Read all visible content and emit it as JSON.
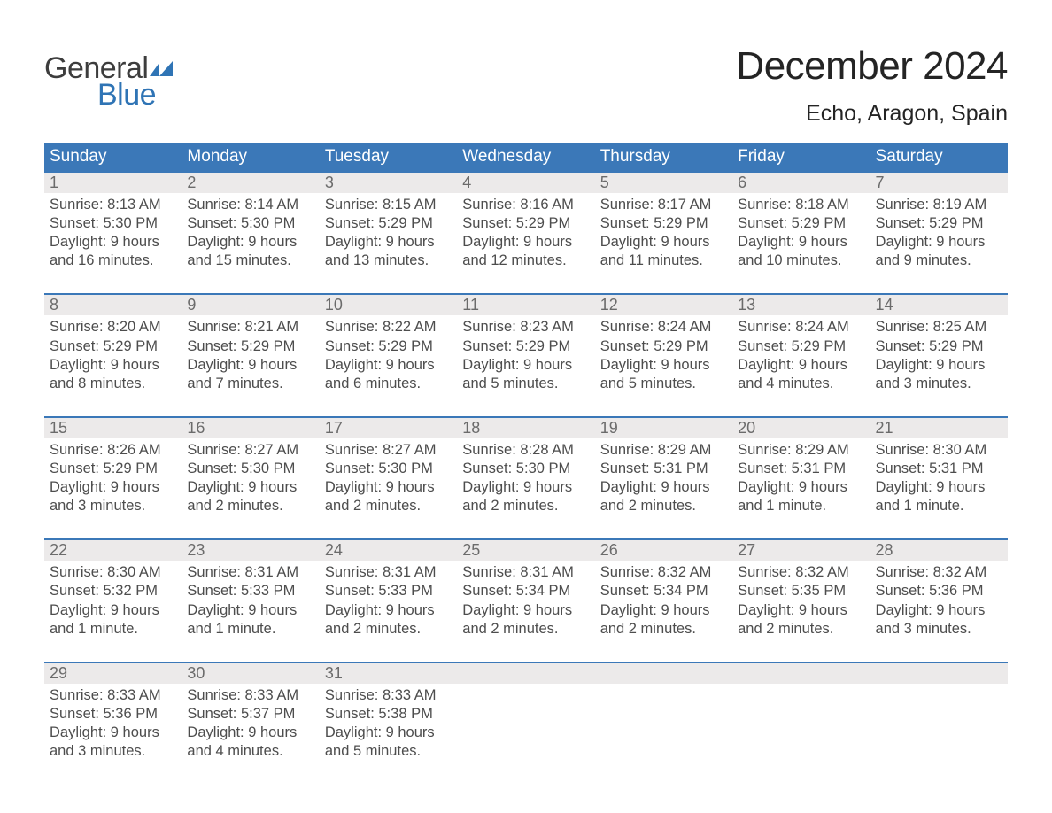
{
  "brandColors": {
    "primary": "#3b78b8",
    "logoBlue": "#2f74b5",
    "textDark": "#333333",
    "headerRowBg": "#eceaea"
  },
  "logo": {
    "line1": "General",
    "line2": "Blue"
  },
  "title": "December 2024",
  "location": "Echo, Aragon, Spain",
  "weekdays": [
    "Sunday",
    "Monday",
    "Tuesday",
    "Wednesday",
    "Thursday",
    "Friday",
    "Saturday"
  ],
  "labels": {
    "sunrise": "Sunrise:",
    "sunset": "Sunset:",
    "daylightPrefix": "Daylight:"
  },
  "days": [
    {
      "n": 1,
      "sunrise": "8:13 AM",
      "sunset": "5:30 PM",
      "daylight": "9 hours and 16 minutes."
    },
    {
      "n": 2,
      "sunrise": "8:14 AM",
      "sunset": "5:30 PM",
      "daylight": "9 hours and 15 minutes."
    },
    {
      "n": 3,
      "sunrise": "8:15 AM",
      "sunset": "5:29 PM",
      "daylight": "9 hours and 13 minutes."
    },
    {
      "n": 4,
      "sunrise": "8:16 AM",
      "sunset": "5:29 PM",
      "daylight": "9 hours and 12 minutes."
    },
    {
      "n": 5,
      "sunrise": "8:17 AM",
      "sunset": "5:29 PM",
      "daylight": "9 hours and 11 minutes."
    },
    {
      "n": 6,
      "sunrise": "8:18 AM",
      "sunset": "5:29 PM",
      "daylight": "9 hours and 10 minutes."
    },
    {
      "n": 7,
      "sunrise": "8:19 AM",
      "sunset": "5:29 PM",
      "daylight": "9 hours and 9 minutes."
    },
    {
      "n": 8,
      "sunrise": "8:20 AM",
      "sunset": "5:29 PM",
      "daylight": "9 hours and 8 minutes."
    },
    {
      "n": 9,
      "sunrise": "8:21 AM",
      "sunset": "5:29 PM",
      "daylight": "9 hours and 7 minutes."
    },
    {
      "n": 10,
      "sunrise": "8:22 AM",
      "sunset": "5:29 PM",
      "daylight": "9 hours and 6 minutes."
    },
    {
      "n": 11,
      "sunrise": "8:23 AM",
      "sunset": "5:29 PM",
      "daylight": "9 hours and 5 minutes."
    },
    {
      "n": 12,
      "sunrise": "8:24 AM",
      "sunset": "5:29 PM",
      "daylight": "9 hours and 5 minutes."
    },
    {
      "n": 13,
      "sunrise": "8:24 AM",
      "sunset": "5:29 PM",
      "daylight": "9 hours and 4 minutes."
    },
    {
      "n": 14,
      "sunrise": "8:25 AM",
      "sunset": "5:29 PM",
      "daylight": "9 hours and 3 minutes."
    },
    {
      "n": 15,
      "sunrise": "8:26 AM",
      "sunset": "5:29 PM",
      "daylight": "9 hours and 3 minutes."
    },
    {
      "n": 16,
      "sunrise": "8:27 AM",
      "sunset": "5:30 PM",
      "daylight": "9 hours and 2 minutes."
    },
    {
      "n": 17,
      "sunrise": "8:27 AM",
      "sunset": "5:30 PM",
      "daylight": "9 hours and 2 minutes."
    },
    {
      "n": 18,
      "sunrise": "8:28 AM",
      "sunset": "5:30 PM",
      "daylight": "9 hours and 2 minutes."
    },
    {
      "n": 19,
      "sunrise": "8:29 AM",
      "sunset": "5:31 PM",
      "daylight": "9 hours and 2 minutes."
    },
    {
      "n": 20,
      "sunrise": "8:29 AM",
      "sunset": "5:31 PM",
      "daylight": "9 hours and 1 minute."
    },
    {
      "n": 21,
      "sunrise": "8:30 AM",
      "sunset": "5:31 PM",
      "daylight": "9 hours and 1 minute."
    },
    {
      "n": 22,
      "sunrise": "8:30 AM",
      "sunset": "5:32 PM",
      "daylight": "9 hours and 1 minute."
    },
    {
      "n": 23,
      "sunrise": "8:31 AM",
      "sunset": "5:33 PM",
      "daylight": "9 hours and 1 minute."
    },
    {
      "n": 24,
      "sunrise": "8:31 AM",
      "sunset": "5:33 PM",
      "daylight": "9 hours and 2 minutes."
    },
    {
      "n": 25,
      "sunrise": "8:31 AM",
      "sunset": "5:34 PM",
      "daylight": "9 hours and 2 minutes."
    },
    {
      "n": 26,
      "sunrise": "8:32 AM",
      "sunset": "5:34 PM",
      "daylight": "9 hours and 2 minutes."
    },
    {
      "n": 27,
      "sunrise": "8:32 AM",
      "sunset": "5:35 PM",
      "daylight": "9 hours and 2 minutes."
    },
    {
      "n": 28,
      "sunrise": "8:32 AM",
      "sunset": "5:36 PM",
      "daylight": "9 hours and 3 minutes."
    },
    {
      "n": 29,
      "sunrise": "8:33 AM",
      "sunset": "5:36 PM",
      "daylight": "9 hours and 3 minutes."
    },
    {
      "n": 30,
      "sunrise": "8:33 AM",
      "sunset": "5:37 PM",
      "daylight": "9 hours and 4 minutes."
    },
    {
      "n": 31,
      "sunrise": "8:33 AM",
      "sunset": "5:38 PM",
      "daylight": "9 hours and 5 minutes."
    }
  ],
  "calendar": {
    "startWeekday": 0,
    "daysInMonth": 31,
    "rows": 5,
    "cols": 7
  }
}
